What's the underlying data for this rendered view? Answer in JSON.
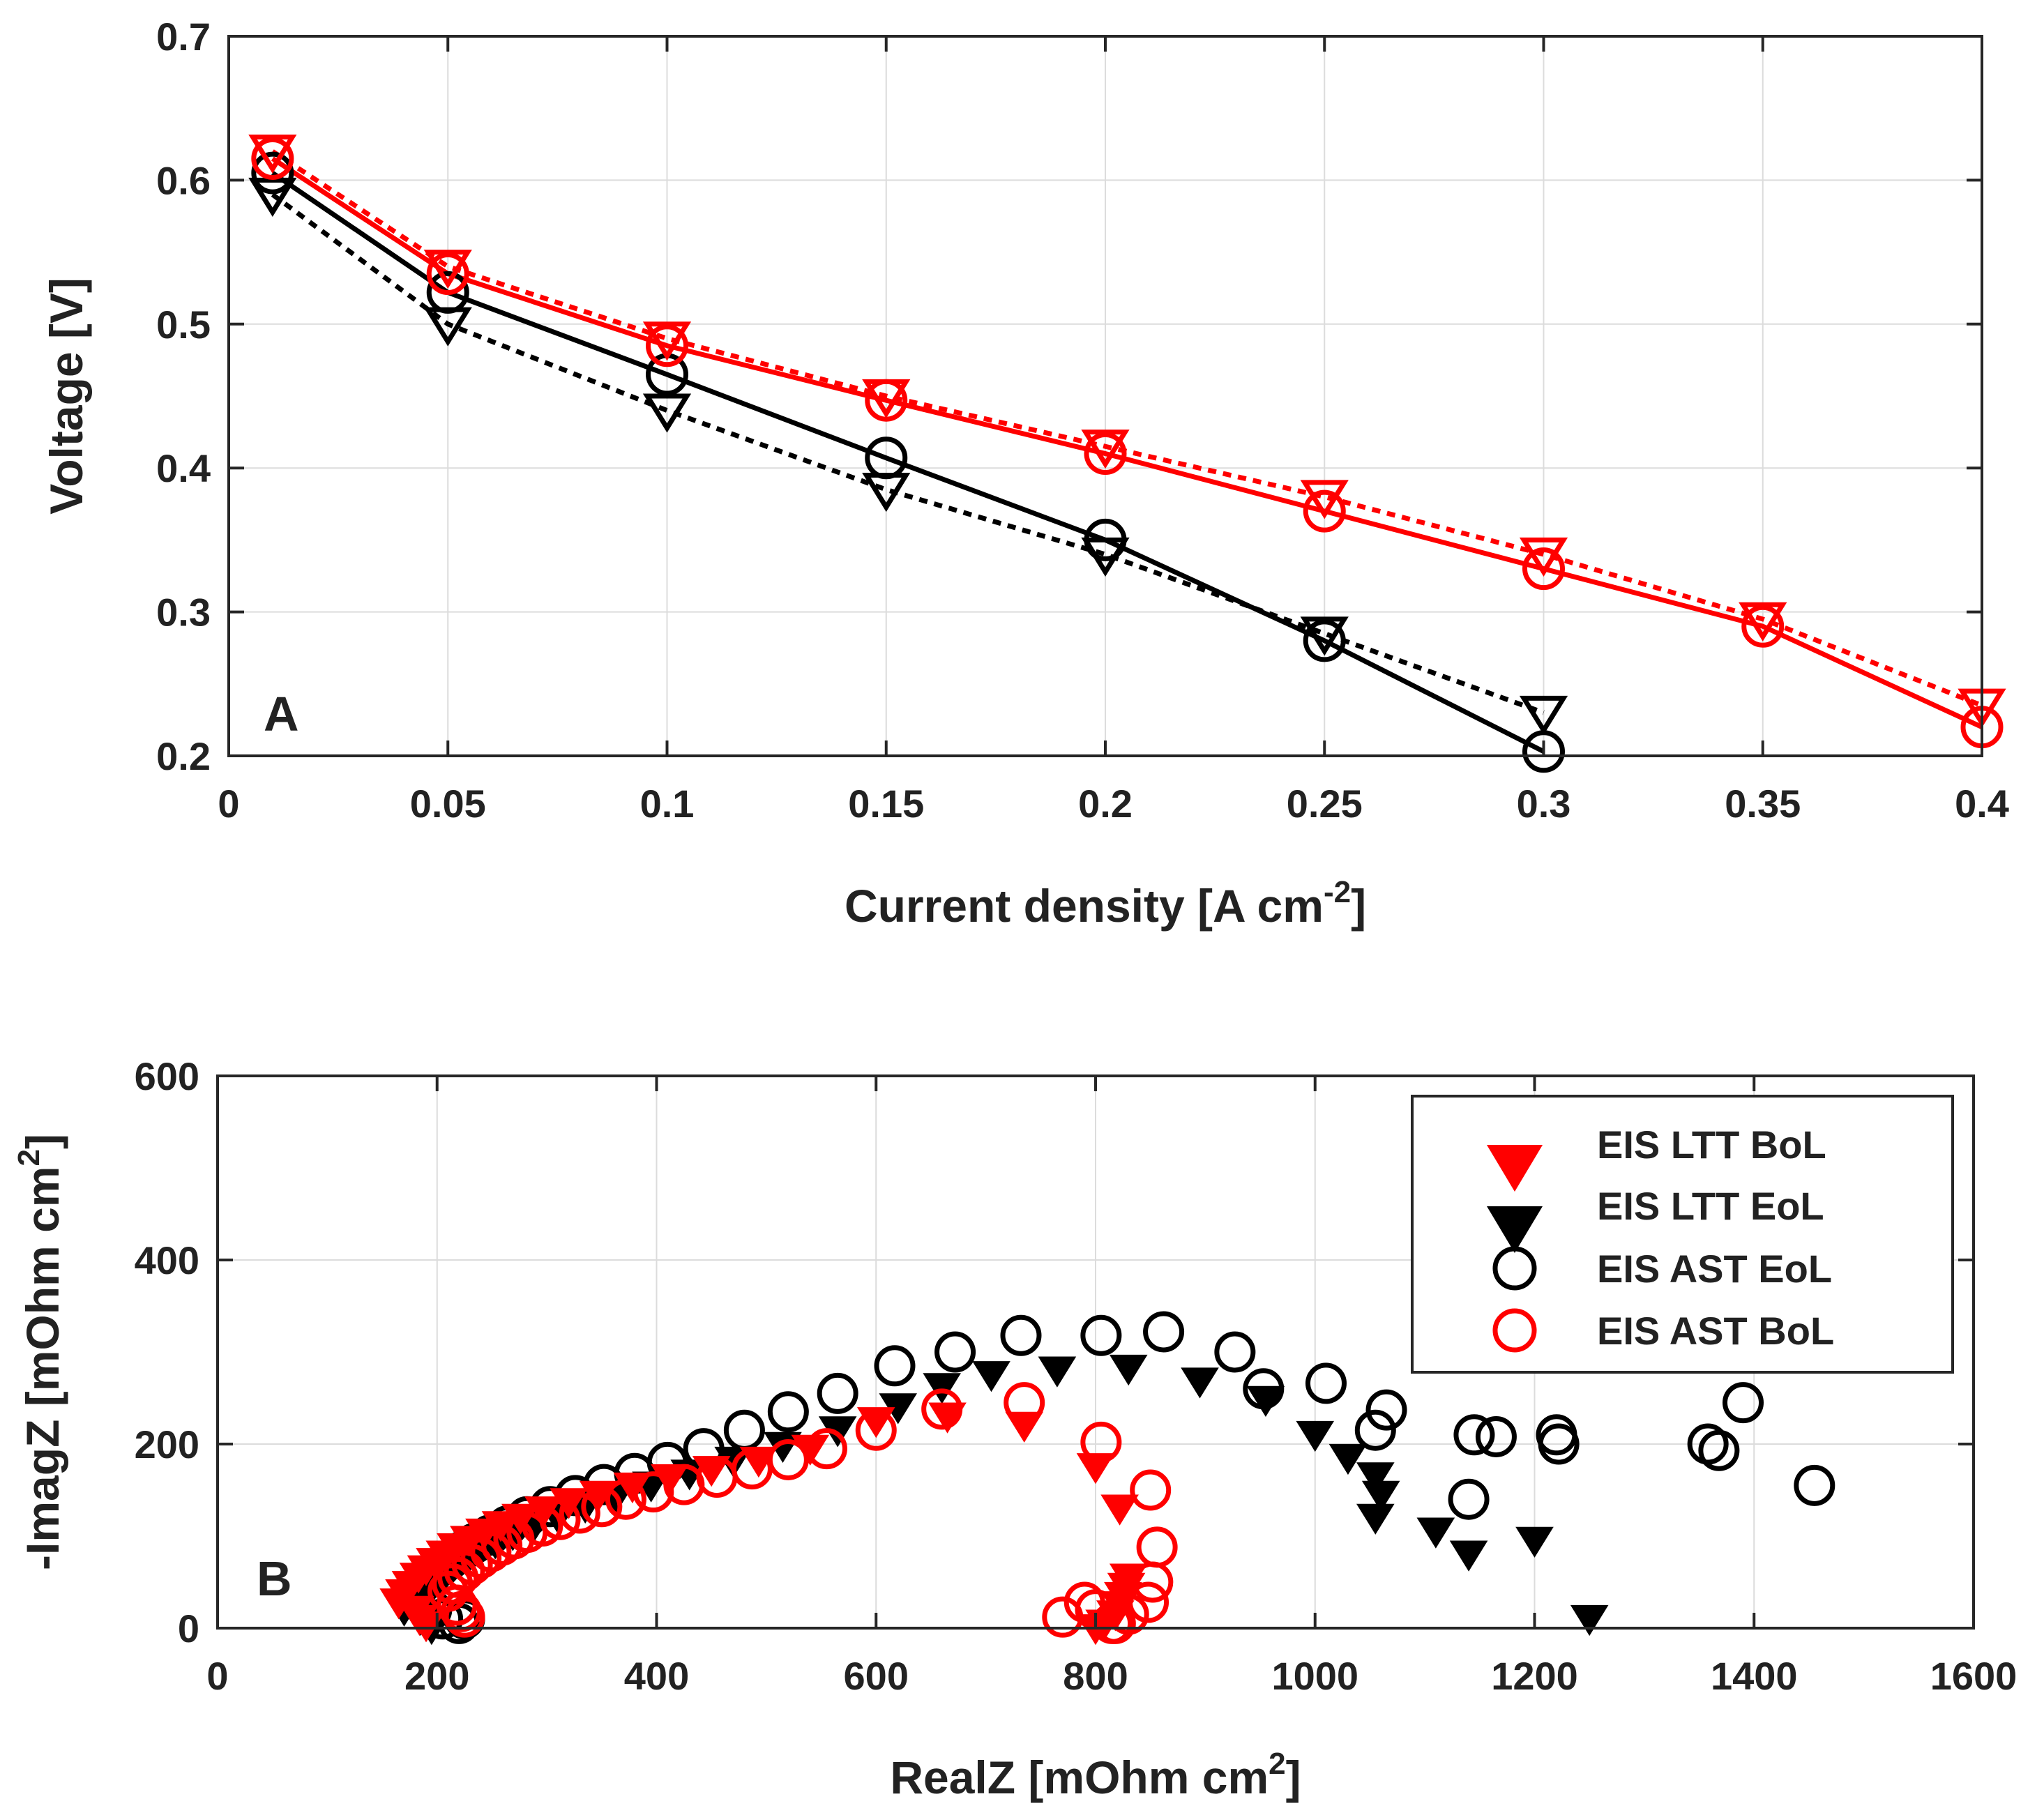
{
  "chart_data": [
    {
      "type": "line",
      "panel_label": "A",
      "xlabel": "Current density [A cm",
      "xlabel_sup": "-2",
      "xlabel_end": "]",
      "ylabel": "Voltage [V]",
      "xlim": [
        0,
        0.4
      ],
      "ylim": [
        0.2,
        0.7
      ],
      "xticks": [
        0,
        0.05,
        0.1,
        0.15,
        0.2,
        0.25,
        0.3,
        0.35,
        0.4
      ],
      "yticks": [
        0.2,
        0.3,
        0.4,
        0.5,
        0.6,
        0.7
      ],
      "grid": true,
      "series": [
        {
          "name": "red-circle-solid",
          "color": "#ff0000",
          "marker": "circle",
          "line": "solid",
          "x": [
            0.01,
            0.05,
            0.1,
            0.15,
            0.2,
            0.25,
            0.3,
            0.35,
            0.4
          ],
          "y": [
            0.615,
            0.535,
            0.485,
            0.447,
            0.41,
            0.37,
            0.33,
            0.29,
            0.22
          ]
        },
        {
          "name": "red-triangle-dotted",
          "color": "#ff0000",
          "marker": "triangle-down",
          "line": "dotted",
          "x": [
            0.01,
            0.05,
            0.1,
            0.15,
            0.2,
            0.25,
            0.3,
            0.35,
            0.4
          ],
          "y": [
            0.62,
            0.54,
            0.49,
            0.45,
            0.415,
            0.38,
            0.34,
            0.295,
            0.235
          ]
        },
        {
          "name": "black-circle-solid",
          "color": "#000000",
          "marker": "circle",
          "line": "solid",
          "x": [
            0.01,
            0.05,
            0.1,
            0.15,
            0.2,
            0.25,
            0.3
          ],
          "y": [
            0.605,
            0.522,
            0.465,
            0.407,
            0.35,
            0.28,
            0.203
          ]
        },
        {
          "name": "black-triangle-dotted",
          "color": "#000000",
          "marker": "triangle-down",
          "line": "dotted",
          "x": [
            0.01,
            0.05,
            0.1,
            0.15,
            0.2,
            0.25,
            0.3
          ],
          "y": [
            0.59,
            0.5,
            0.44,
            0.385,
            0.34,
            0.285,
            0.23
          ]
        }
      ]
    },
    {
      "type": "scatter",
      "panel_label": "B",
      "xlabel": "RealZ [mOhm cm",
      "xlabel_sup": "2",
      "xlabel_end": "]",
      "ylabel": "-ImagZ [mOhm cm",
      "ylabel_sup": "2",
      "ylabel_end": "]",
      "xlim": [
        0,
        1600
      ],
      "ylim": [
        0,
        600
      ],
      "xticks": [
        0,
        200,
        400,
        600,
        800,
        1000,
        1200,
        1400,
        1600
      ],
      "yticks": [
        0,
        200,
        400,
        600
      ],
      "grid": true,
      "legend_position": "top-right",
      "series": [
        {
          "name": "EIS LTT BoL",
          "color": "#ff0000",
          "marker": "triangle-down-filled",
          "x": [
            165,
            170,
            176,
            183,
            190,
            198,
            207,
            217,
            229,
            243,
            258,
            276,
            297,
            320,
            347,
            378,
            412,
            450,
            493,
            540,
            600,
            665,
            735,
            800,
            822,
            830,
            828,
            825,
            822,
            818,
            808,
            800,
            180,
            184,
            190
          ],
          "y": [
            28,
            38,
            47,
            56,
            64,
            72,
            80,
            88,
            96,
            104,
            112,
            120,
            128,
            137,
            145,
            154,
            163,
            172,
            182,
            195,
            225,
            230,
            220,
            175,
            130,
            55,
            45,
            35,
            25,
            15,
            5,
            0,
            20,
            10,
            3
          ]
        },
        {
          "name": "EIS LTT EoL",
          "color": "#000000",
          "marker": "triangle-down-filled",
          "x": [
            170,
            175,
            181,
            188,
            196,
            205,
            215,
            226,
            239,
            253,
            269,
            288,
            310,
            335,
            363,
            395,
            430,
            470,
            515,
            565,
            620,
            660,
            705,
            765,
            830,
            895,
            955,
            1000,
            1030,
            1055,
            1060,
            1055,
            1110,
            1140,
            1200,
            1250,
            185,
            190,
            195
          ],
          "y": [
            20,
            28,
            36,
            44,
            52,
            60,
            68,
            76,
            84,
            93,
            102,
            111,
            121,
            132,
            143,
            155,
            168,
            182,
            198,
            215,
            240,
            262,
            275,
            280,
            282,
            268,
            248,
            210,
            185,
            165,
            145,
            120,
            105,
            80,
            95,
            10,
            10,
            5,
            0
          ]
        },
        {
          "name": "EIS AST EoL",
          "color": "#000000",
          "marker": "circle",
          "x": [
            178,
            182,
            188,
            195,
            203,
            212,
            222,
            234,
            248,
            264,
            282,
            303,
            326,
            352,
            380,
            410,
            443,
            480,
            520,
            565,
            617,
            672,
            732,
            805,
            862,
            927,
            953,
            1010,
            1055,
            1065,
            1140,
            1145,
            1165,
            1220,
            1222,
            1358,
            1368,
            1390,
            1455,
            195,
            205,
            220,
            225
          ],
          "y": [
            35,
            43,
            51,
            59,
            67,
            75,
            83,
            92,
            101,
            111,
            121,
            132,
            144,
            156,
            168,
            180,
            195,
            215,
            235,
            255,
            285,
            300,
            318,
            318,
            322,
            300,
            260,
            266,
            215,
            237,
            140,
            210,
            208,
            210,
            200,
            200,
            193,
            245,
            155,
            20,
            10,
            5,
            10
          ]
        },
        {
          "name": "EIS AST BoL",
          "color": "#ff0000",
          "marker": "circle",
          "x": [
            210,
            214,
            219,
            225,
            232,
            240,
            249,
            259,
            270,
            282,
            296,
            312,
            330,
            350,
            372,
            397,
            425,
            455,
            487,
            520,
            555,
            600,
            660,
            735,
            805,
            850,
            856,
            852,
            848,
            830,
            818,
            770,
            790,
            800,
            815,
            225,
            222,
            218
          ],
          "y": [
            40,
            48,
            55,
            62,
            69,
            76,
            83,
            90,
            97,
            104,
            111,
            118,
            125,
            132,
            140,
            148,
            156,
            164,
            173,
            183,
            195,
            215,
            238,
            245,
            202,
            150,
            88,
            50,
            28,
            15,
            5,
            12,
            28,
            20,
            5,
            12,
            18,
            25
          ]
        }
      ]
    }
  ],
  "legend": [
    {
      "label": "EIS LTT BoL",
      "color": "#ff0000",
      "marker": "triangle-down-filled"
    },
    {
      "label": "EIS LTT EoL",
      "color": "#000000",
      "marker": "triangle-down-filled"
    },
    {
      "label": "EIS AST EoL",
      "color": "#000000",
      "marker": "circle"
    },
    {
      "label": "EIS AST BoL",
      "color": "#ff0000",
      "marker": "circle"
    }
  ]
}
